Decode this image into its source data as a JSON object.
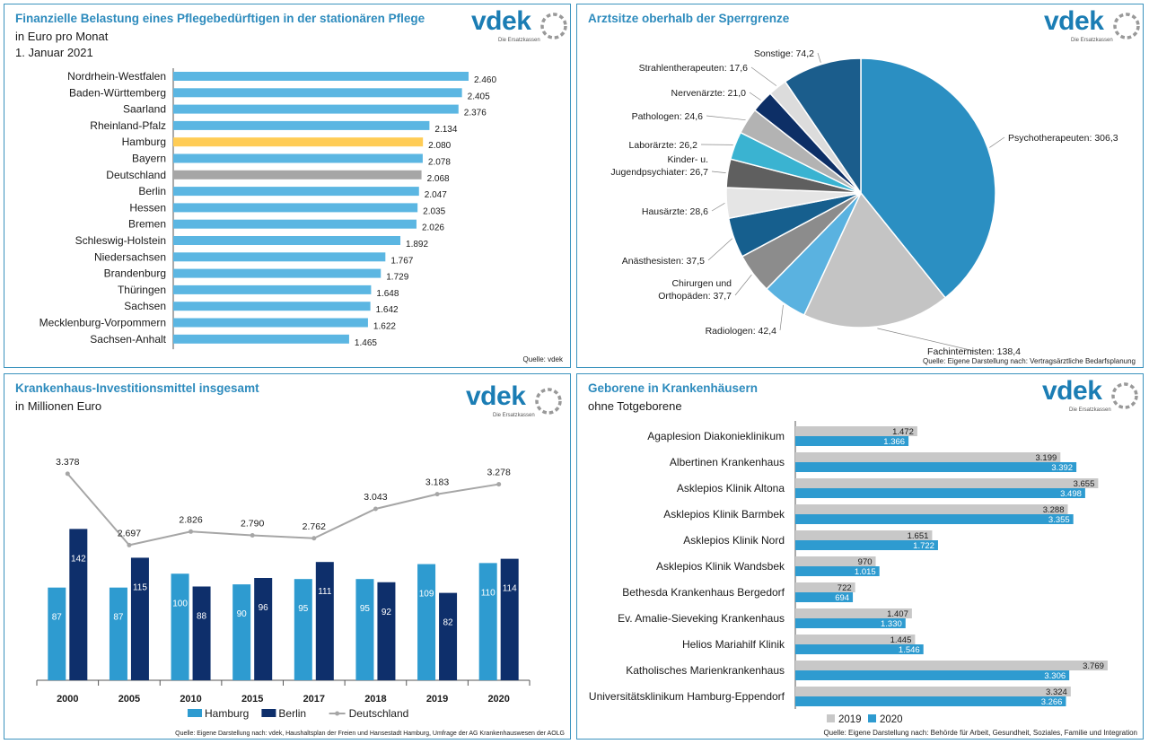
{
  "logo": {
    "text": "vdek",
    "tagline": "Die Ersatzkassen"
  },
  "colors": {
    "blue": "#5bb6e2",
    "highlight": "#ffcc55",
    "grey": "#a6a6a6",
    "title": "#2d8bbd",
    "dark": "#0e2f6b",
    "mid": "#2e9bd0",
    "line": "#a6a6a6"
  },
  "panel1": {
    "title": "Finanzielle Belastung eines Pflegebedürftigen in der stationären Pflege",
    "subtitle1": "in Euro pro Monat",
    "subtitle2": "1. Januar 2021",
    "source": "Quelle: vdek"
  },
  "panel2": {
    "title": "Arztsitze oberhalb der Sperrgrenze",
    "source": "Quelle: Eigene Darstellung nach: Vertragsärztliche Bedarfsplanung"
  },
  "panel3": {
    "title": "Krankenhaus-Investitionsmittel insgesamt",
    "subtitle": "in Millionen Euro",
    "source": "Quelle: Eigene Darstellung nach: vdek, Haushaltsplan der Freien und Hansestadt Hamburg, Umfrage der AG Krankenhauswesen der AOLG"
  },
  "panel4": {
    "title": "Geborene in Krankenhäusern",
    "subtitle": "ohne Totgeborene",
    "source": "Quelle: Eigene Darstellung nach: Behörde für Arbeit, Gesundheit, Soziales, Familie und Integration"
  },
  "chart_data": [
    {
      "type": "bar",
      "orientation": "horizontal",
      "title": "Finanzielle Belastung eines Pflegebedürftigen in der stationären Pflege",
      "unit": "Euro pro Monat",
      "categories": [
        "Nordrhein-Westfalen",
        "Baden-Württemberg",
        "Saarland",
        "Rheinland-Pfalz",
        "Hamburg",
        "Bayern",
        "Deutschland",
        "Berlin",
        "Hessen",
        "Bremen",
        "Schleswig-Holstein",
        "Niedersachsen",
        "Brandenburg",
        "Thüringen",
        "Sachsen",
        "Mecklenburg-Vorpommern",
        "Sachsen-Anhalt"
      ],
      "values": [
        2460,
        2405,
        2376,
        2134,
        2080,
        2078,
        2068,
        2047,
        2035,
        2026,
        1892,
        1767,
        1729,
        1648,
        1642,
        1622,
        1465
      ],
      "labels": [
        "2.460",
        "2.405",
        "2.376",
        "2.134",
        "2.080",
        "2.078",
        "2.068",
        "2.047",
        "2.035",
        "2.026",
        "1.892",
        "1.767",
        "1.729",
        "1.648",
        "1.642",
        "1.622",
        "1.465"
      ],
      "highlight": {
        "Hamburg": "highlight",
        "Deutschland": "grey"
      },
      "xlim": [
        0,
        2460
      ]
    },
    {
      "type": "pie",
      "title": "Arztsitze oberhalb der Sperrgrenze",
      "slices": [
        {
          "name": "Psychotherapeuten",
          "value": 306.3,
          "label": "Psychotherapeuten: 306,3",
          "color": "#2b8fc2"
        },
        {
          "name": "Fachinternisten",
          "value": 138.4,
          "label": "Fachinternisten: 138,4",
          "color": "#c4c4c4"
        },
        {
          "name": "Radiologen",
          "value": 42.4,
          "label": "Radiologen: 42,4",
          "color": "#5ab2e0"
        },
        {
          "name": "Chirurgen und Orthopäden",
          "value": 37.7,
          "label": "Chirurgen und|Orthopäden: 37,7",
          "color": "#8c8c8c"
        },
        {
          "name": "Anästhesisten",
          "value": 37.5,
          "label": "Anästhesisten: 37,5",
          "color": "#165f8e"
        },
        {
          "name": "Hausärzte",
          "value": 28.6,
          "label": "Hausärzte: 28,6",
          "color": "#e5e5e5"
        },
        {
          "name": "Kinder- u. Jugendpsychiater",
          "value": 26.7,
          "label": "Kinder- u.|Jugendpsychiater: 26,7",
          "color": "#5f5f5f"
        },
        {
          "name": "Laborärzte",
          "value": 26.2,
          "label": "Laborärzte: 26,2",
          "color": "#3ab3d1"
        },
        {
          "name": "Pathologen",
          "value": 24.6,
          "label": "Pathologen: 24,6",
          "color": "#b3b3b3"
        },
        {
          "name": "Nervenärzte",
          "value": 21.0,
          "label": "Nervenärzte: 21,0",
          "color": "#0d2f66"
        },
        {
          "name": "Strahlentherapeuten",
          "value": 17.6,
          "label": "Strahlentherapeuten: 17,6",
          "color": "#dcdcdc"
        },
        {
          "name": "Sonstige",
          "value": 74.2,
          "label": "Sonstige: 74,2",
          "color": "#1b5d8c"
        }
      ]
    },
    {
      "type": "bar",
      "title": "Krankenhaus-Investitionsmittel insgesamt",
      "unit": "Millionen Euro",
      "categories": [
        "2000",
        "2005",
        "2010",
        "2015",
        "2017",
        "2018",
        "2019",
        "2020"
      ],
      "series": [
        {
          "name": "Hamburg",
          "values": [
            87,
            87,
            100,
            90,
            95,
            95,
            109,
            110
          ],
          "color": "#2e9bd0"
        },
        {
          "name": "Berlin",
          "values": [
            142,
            115,
            88,
            96,
            111,
            92,
            82,
            114
          ],
          "color": "#0e2f6b"
        }
      ],
      "line_series": {
        "name": "Deutschland",
        "values": [
          3378,
          2697,
          2826,
          2790,
          2762,
          3043,
          3183,
          3278
        ],
        "labels": [
          "3.378",
          "2.697",
          "2.826",
          "2.790",
          "2.762",
          "3.043",
          "3.183",
          "3.278"
        ],
        "color": "#a6a6a6"
      },
      "ylim_bars": [
        0,
        160
      ],
      "ylim_line": [
        1500,
        3900
      ]
    },
    {
      "type": "bar",
      "orientation": "horizontal",
      "title": "Geborene in Krankenhäusern",
      "unit": "ohne Totgeborene",
      "categories": [
        "Agaplesion Diakonieklinikum",
        "Albertinen Krankenhaus",
        "Asklepios Klinik Altona",
        "Asklepios Klinik Barmbek",
        "Asklepios Klinik Nord",
        "Asklepios Klinik Wandsbek",
        "Bethesda Krankenhaus Bergedorf",
        "Ev. Amalie-Sieveking Krankenhaus",
        "Helios Mariahilf Klinik",
        "Katholisches Marienkrankenhaus",
        "Universitätsklinikum Hamburg-Eppendorf"
      ],
      "series": [
        {
          "name": "2019",
          "values": [
            1472,
            3199,
            3655,
            3288,
            1651,
            970,
            722,
            1407,
            1445,
            3769,
            3324
          ],
          "labels": [
            "1.472",
            "3.199",
            "3.655",
            "3.288",
            "1.651",
            "970",
            "722",
            "1.407",
            "1.445",
            "3.769",
            "3.324"
          ],
          "color": "#c8c8c8"
        },
        {
          "name": "2020",
          "values": [
            1366,
            3392,
            3498,
            3355,
            1722,
            1015,
            694,
            1330,
            1546,
            3306,
            3266
          ],
          "labels": [
            "1.366",
            "3.392",
            "3.498",
            "3.355",
            "1.722",
            "1.015",
            "694",
            "1.330",
            "1.546",
            "3.306",
            "3.266"
          ],
          "color": "#2e9bd0"
        }
      ],
      "xlim": [
        0,
        3900
      ]
    }
  ]
}
